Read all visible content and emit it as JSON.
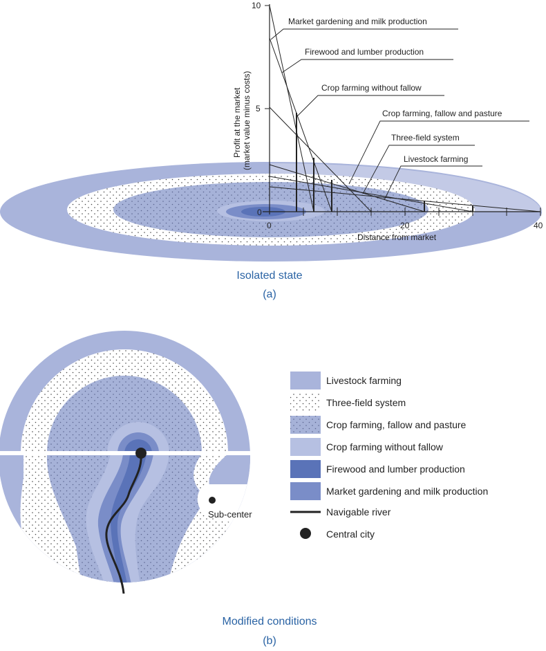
{
  "colors": {
    "livestock": "#a9b4db",
    "outer_ellipse_light": "#c3cae6",
    "three_field_bg": "#ffffff",
    "crop_fallow": "#a6b2d8",
    "crop_no_fallow": "#b6c0e2",
    "firewood": "#5a73b8",
    "market_gardening": "#7a8dc8",
    "river": "#222222",
    "caption": "#2a63a4"
  },
  "top": {
    "y_axis_label_line1": "Profit at the market",
    "y_axis_label_line2": "(market value minus costs)",
    "x_axis_label": "Distance from market",
    "y_ticks": [
      "10",
      "5",
      "0"
    ],
    "x_ticks": [
      "0",
      "20",
      "40"
    ],
    "line_labels": [
      "Market gardening and milk production",
      "Firewood and lumber production",
      "Crop farming without fallow",
      "Crop farming, fallow and pasture",
      "Three-field system",
      "Livestock farming"
    ],
    "caption": "Isolated state",
    "sub": "(a)"
  },
  "bottom": {
    "subcenter_label": "Sub-center",
    "caption": "Modified conditions",
    "sub": "(b)"
  },
  "legend": [
    {
      "label": "Livestock farming",
      "icon": "swatch-livestock"
    },
    {
      "label": "Three-field system",
      "icon": "swatch-three-field"
    },
    {
      "label": "Crop farming, fallow and pasture",
      "icon": "swatch-crop-fallow"
    },
    {
      "label": "Crop farming without fallow",
      "icon": "swatch-crop-no-fallow"
    },
    {
      "label": "Firewood and lumber production",
      "icon": "swatch-firewood"
    },
    {
      "label": "Market gardening and milk production",
      "icon": "swatch-market-gardening"
    },
    {
      "label": "Navigable river",
      "icon": "river-line-icon"
    },
    {
      "label": "Central city",
      "icon": "city-dot-icon"
    }
  ]
}
